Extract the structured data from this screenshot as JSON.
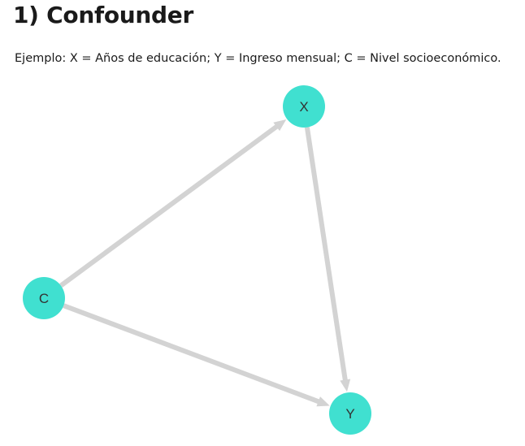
{
  "header": {
    "title": "1) Confounder",
    "description": "Ejemplo: X = Años de educación; Y = Ingreso mensual; C = Nivel socioeconómico."
  },
  "diagram": {
    "colors": {
      "node": "#40e0d0",
      "edge": "#d3d3d3",
      "label": "#333333"
    },
    "nodes": [
      {
        "id": "X",
        "label": "X"
      },
      {
        "id": "C",
        "label": "C"
      },
      {
        "id": "Y",
        "label": "Y"
      }
    ],
    "edges": [
      {
        "from": "C",
        "to": "X"
      },
      {
        "from": "X",
        "to": "Y"
      },
      {
        "from": "C",
        "to": "Y"
      }
    ]
  }
}
